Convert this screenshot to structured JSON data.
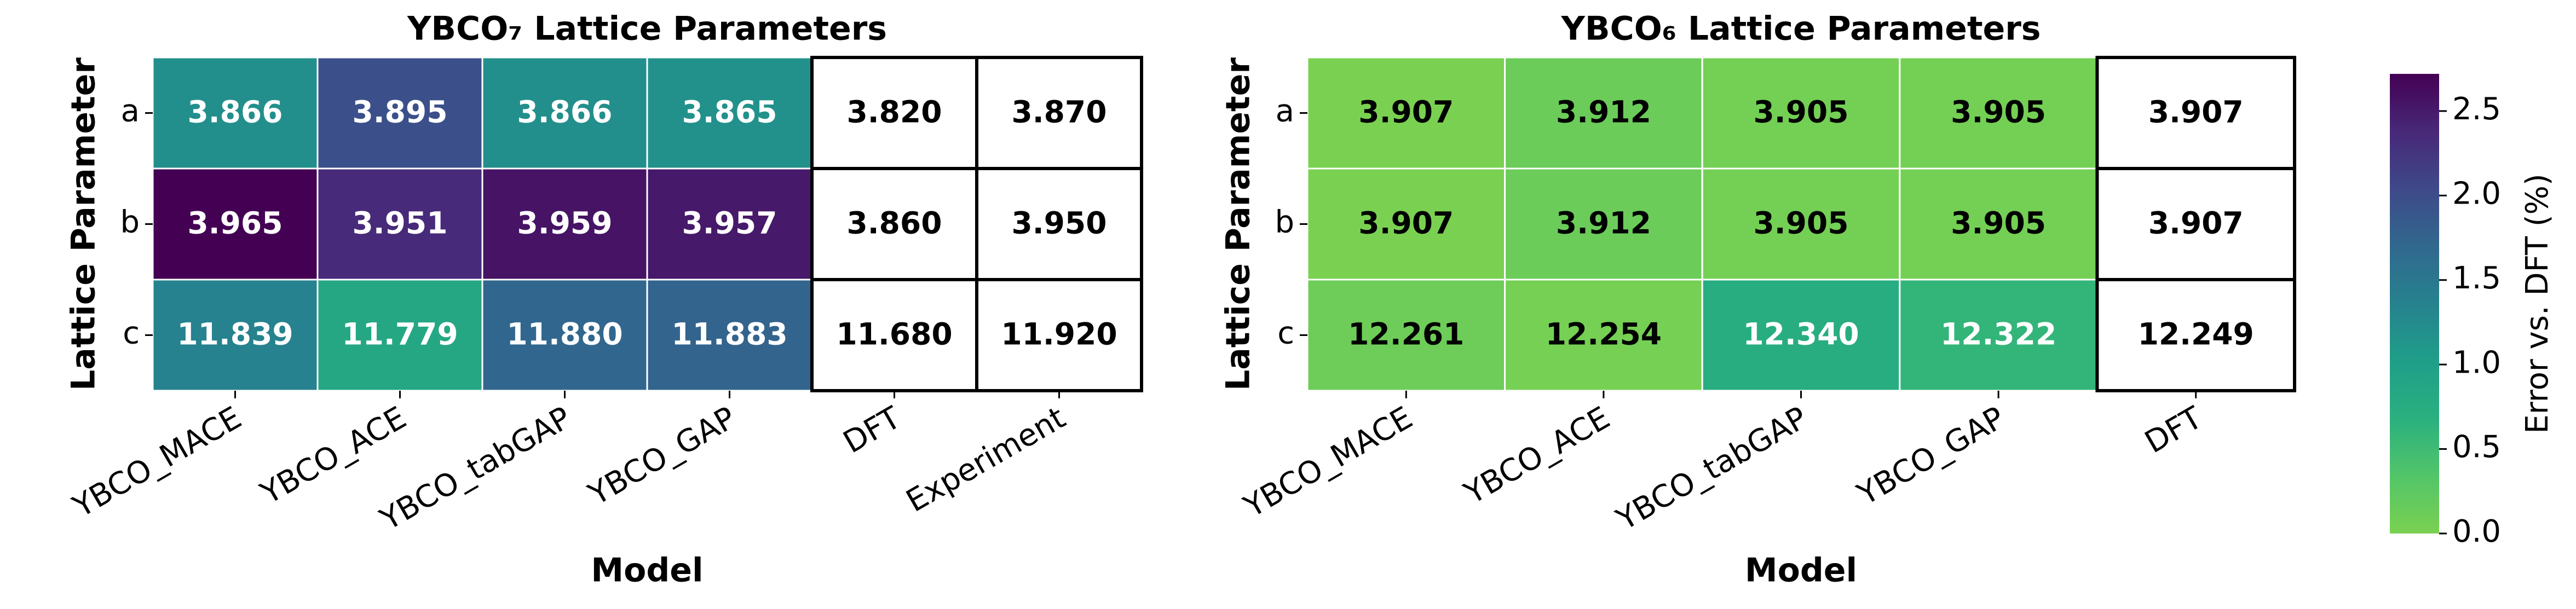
{
  "chart_data": [
    {
      "type": "heatmap",
      "title": "YBCO₇ Lattice Parameters",
      "xlabel": "Model",
      "ylabel": "Lattice Parameter",
      "categories": [
        "YBCO_MACE",
        "YBCO_ACE",
        "YBCO_tabGAP",
        "YBCO_GAP",
        "DFT",
        "Experiment"
      ],
      "rows": [
        "a",
        "b",
        "c"
      ],
      "values": [
        [
          "3.866",
          "3.895",
          "3.866",
          "3.865",
          "3.820",
          "3.870"
        ],
        [
          "3.965",
          "3.951",
          "3.959",
          "3.957",
          "3.860",
          "3.950"
        ],
        [
          "11.839",
          "11.779",
          "11.880",
          "11.883",
          "11.680",
          "11.920"
        ]
      ],
      "errors": [
        [
          1.2,
          1.96,
          1.2,
          1.18,
          null,
          null
        ],
        [
          2.72,
          2.36,
          2.56,
          2.51,
          null,
          null
        ],
        [
          1.36,
          0.85,
          1.71,
          1.74,
          null,
          null
        ]
      ]
    },
    {
      "type": "heatmap",
      "title": "YBCO₆ Lattice Parameters",
      "xlabel": "Model",
      "ylabel": "Lattice Parameter",
      "categories": [
        "YBCO_MACE",
        "YBCO_ACE",
        "YBCO_tabGAP",
        "YBCO_GAP",
        "DFT"
      ],
      "rows": [
        "a",
        "b",
        "c"
      ],
      "values": [
        [
          "3.907",
          "3.912",
          "3.905",
          "3.905",
          "3.907"
        ],
        [
          "3.907",
          "3.912",
          "3.905",
          "3.905",
          "3.907"
        ],
        [
          "12.261",
          "12.254",
          "12.340",
          "12.322",
          "12.249"
        ]
      ],
      "errors": [
        [
          0,
          0.13,
          0.05,
          0.05,
          null
        ],
        [
          0,
          0.13,
          0.05,
          0.05,
          null
        ],
        [
          0.1,
          0.04,
          0.74,
          0.6,
          null
        ]
      ]
    }
  ],
  "colorbar": {
    "label": "Error vs. DFT (%)",
    "lim": [
      0,
      2.72
    ],
    "ticks": [
      {
        "value": 0,
        "label": "0.0"
      },
      0.5,
      {
        "value": 1,
        "label": "1.0"
      },
      1.5,
      {
        "value": 2,
        "label": "2.0"
      },
      2.5
    ],
    "colors": [
      "#7ad151",
      "#52c569",
      "#2ab07f",
      "#1f9e89",
      "#26828e",
      "#31688e",
      "#3e4989",
      "#482878",
      "#440154"
    ]
  }
}
